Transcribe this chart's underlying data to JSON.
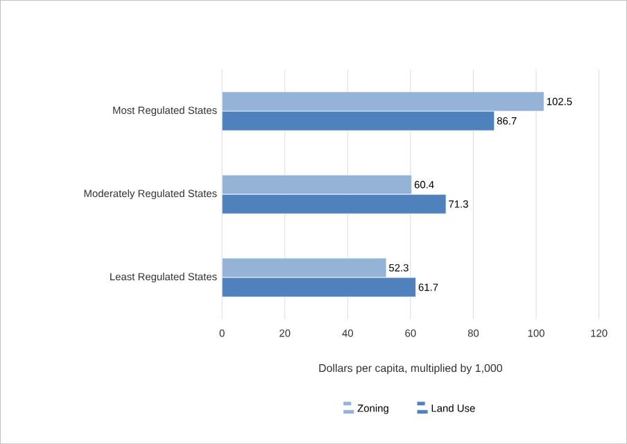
{
  "chart_data": {
    "type": "bar",
    "orientation": "horizontal",
    "categories": [
      "Most Regulated States",
      "Moderately Regulated States",
      "Least Regulated States"
    ],
    "series": [
      {
        "name": "Zoning",
        "color": "#95b3d7",
        "values": [
          102.5,
          60.4,
          52.3
        ]
      },
      {
        "name": "Land Use",
        "color": "#4f81bd",
        "values": [
          86.7,
          71.3,
          61.7
        ]
      }
    ],
    "xlabel": "Dollars per capita, multiplied by 1,000",
    "xlim": [
      0,
      120
    ],
    "xticks": [
      0,
      20,
      40,
      60,
      80,
      100,
      120
    ],
    "grid": "x",
    "legend": "bottom",
    "data_labels": true
  }
}
